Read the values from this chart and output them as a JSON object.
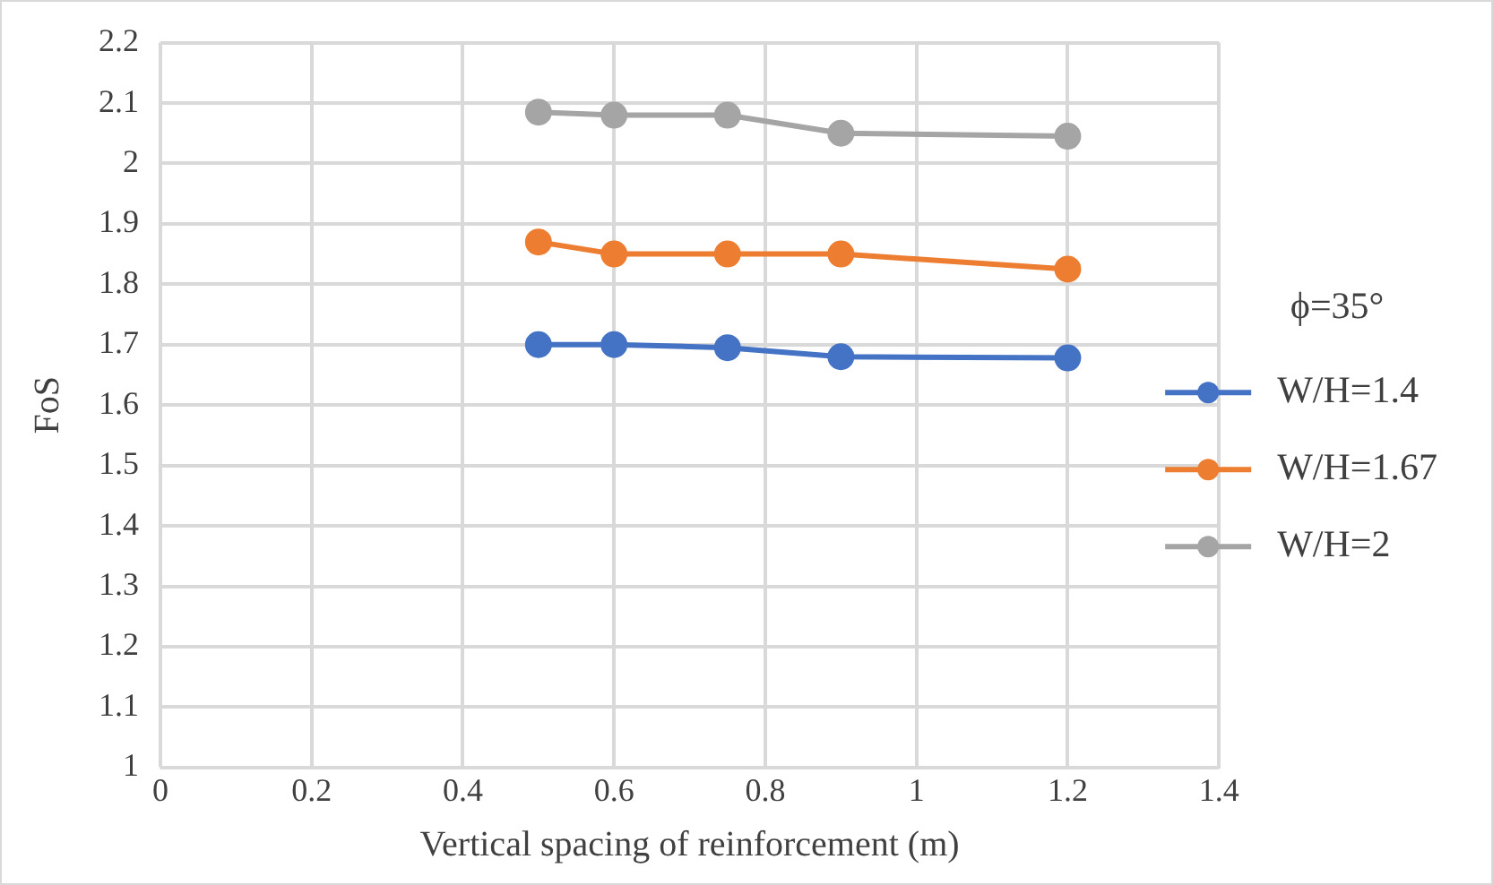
{
  "chart_data": {
    "type": "line",
    "xlabel": "Vertical spacing of reinforcement (m)",
    "ylabel": "FoS",
    "legend_title": "ϕ=35°",
    "legend": "right",
    "grid": true,
    "marker": "circle",
    "line_style": "solid",
    "x": [
      0.5,
      0.6,
      0.75,
      0.9,
      1.2
    ],
    "xlim": [
      0,
      1.4
    ],
    "xticks": [
      0,
      0.2,
      0.4,
      0.6,
      0.8,
      1,
      1.2,
      1.4
    ],
    "ylim": [
      1,
      2.2
    ],
    "yticks": [
      1,
      1.1,
      1.2,
      1.3,
      1.4,
      1.5,
      1.6,
      1.7,
      1.8,
      1.9,
      2,
      2.1,
      2.2
    ],
    "series": [
      {
        "name": "W/H=1.4",
        "color": "#4472c4",
        "values": [
          1.7,
          1.7,
          1.695,
          1.68,
          1.678
        ]
      },
      {
        "name": "W/H=1.67",
        "color": "#ed7d31",
        "values": [
          1.87,
          1.85,
          1.85,
          1.85,
          1.825
        ]
      },
      {
        "name": "W/H=2",
        "color": "#a5a5a5",
        "values": [
          2.085,
          2.08,
          2.08,
          2.05,
          2.045
        ]
      }
    ]
  }
}
